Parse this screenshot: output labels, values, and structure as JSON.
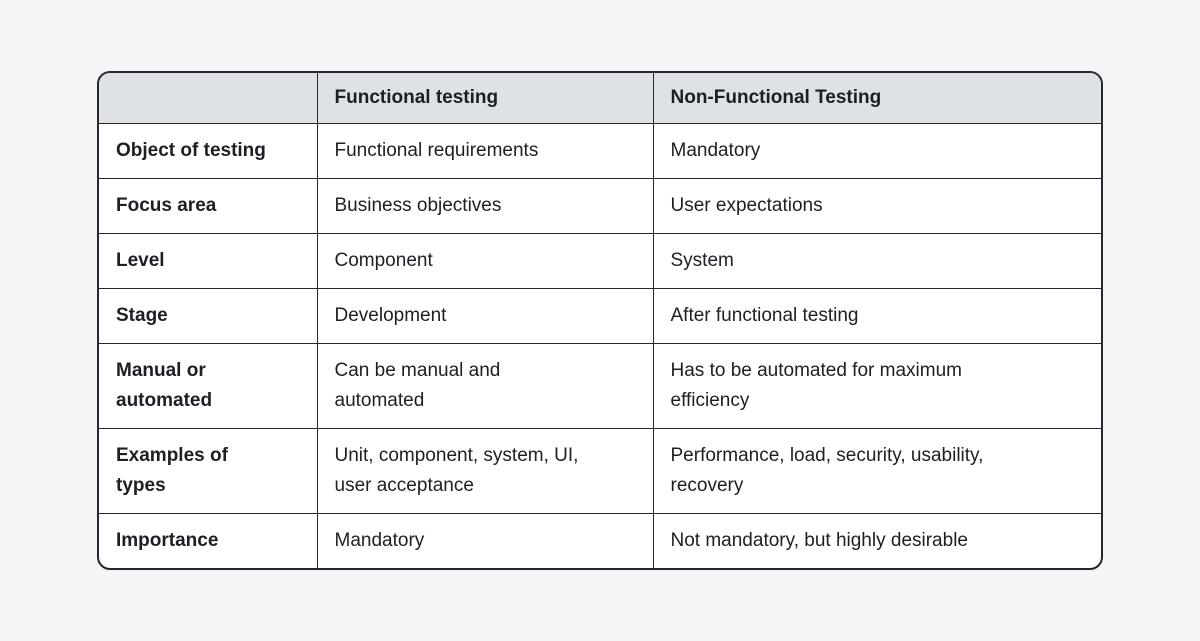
{
  "page": {
    "background": "#f3f5f7"
  },
  "table": {
    "colors": {
      "border": "#24282e",
      "header_bg": "#dee1e5",
      "body_bg": "#ffffff",
      "text": "#1c1f23"
    },
    "columns": {
      "label": "",
      "functional": "Functional testing",
      "non_functional": "Non-Functional Testing"
    },
    "rows": [
      {
        "label": "Object of testing",
        "functional": "Functional requirements",
        "non_functional": "Mandatory"
      },
      {
        "label": "Focus area",
        "functional": "Business objectives",
        "non_functional": "User expectations"
      },
      {
        "label": "Level",
        "functional": "Component",
        "non_functional": "System"
      },
      {
        "label": "Stage",
        "functional": "Development",
        "non_functional": "After functional testing"
      },
      {
        "label": "Manual or\nautomated",
        "functional": "Can be manual and\nautomated",
        "non_functional": "Has to be automated for maximum\nefficiency"
      },
      {
        "label": "Examples of\ntypes",
        "functional": "Unit, component, system, UI,\nuser acceptance",
        "non_functional": "Performance, load, security, usability,\nrecovery"
      },
      {
        "label": "Importance",
        "functional": "Mandatory",
        "non_functional": "Not mandatory, but highly desirable"
      }
    ]
  }
}
